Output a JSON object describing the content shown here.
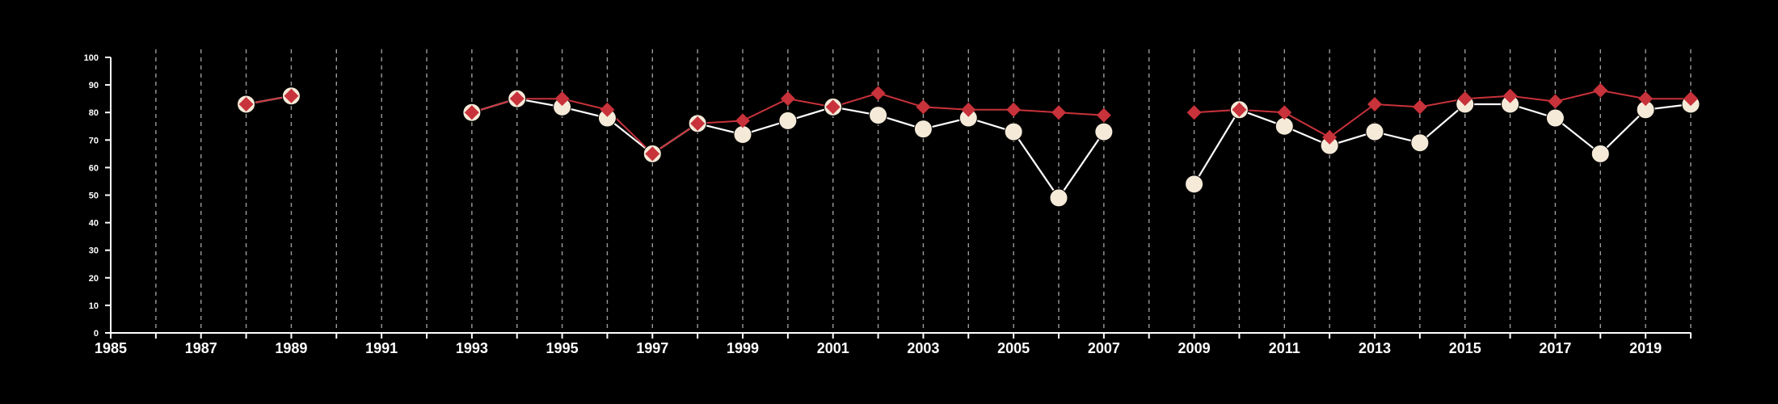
{
  "chart_data": {
    "type": "line",
    "title": "",
    "xlabel": "",
    "ylabel": "",
    "xlim": [
      1985,
      2020
    ],
    "ylim": [
      0,
      100
    ],
    "x_ticks": [
      "1985",
      "1987",
      "1989",
      "1991",
      "1993",
      "1995",
      "1997",
      "1999",
      "2001",
      "2003",
      "2005",
      "2007",
      "2009",
      "2011",
      "2013",
      "2015",
      "2017",
      "2019"
    ],
    "y_ticks": [
      "0",
      "10",
      "20",
      "30",
      "40",
      "50",
      "60",
      "70",
      "80",
      "90",
      "100"
    ],
    "vertical_grid": "dashed",
    "background": "#000000",
    "series": [
      {
        "color": "#f5ead8",
        "marker": "circle",
        "points": [
          [
            1988,
            83
          ],
          [
            1989,
            86
          ],
          [
            1993,
            80
          ],
          [
            1994,
            85
          ],
          [
            1995,
            82
          ],
          [
            1996,
            78
          ],
          [
            1997,
            65
          ],
          [
            1998,
            76
          ],
          [
            1999,
            72
          ],
          [
            2000,
            77
          ],
          [
            2001,
            82
          ],
          [
            2002,
            79
          ],
          [
            2003,
            74
          ],
          [
            2004,
            78
          ],
          [
            2005,
            73
          ],
          [
            2006,
            49
          ],
          [
            2007,
            73
          ],
          [
            2009,
            54
          ],
          [
            2010,
            81
          ],
          [
            2011,
            75
          ],
          [
            2012,
            68
          ],
          [
            2013,
            73
          ],
          [
            2014,
            69
          ],
          [
            2015,
            83
          ],
          [
            2016,
            83
          ],
          [
            2017,
            78
          ],
          [
            2018,
            65
          ],
          [
            2019,
            81
          ],
          [
            2020,
            83
          ]
        ]
      },
      {
        "color": "#c8323a",
        "marker": "diamond",
        "points": [
          [
            1988,
            83
          ],
          [
            1989,
            86
          ],
          [
            1993,
            80
          ],
          [
            1994,
            85
          ],
          [
            1995,
            85
          ],
          [
            1996,
            81
          ],
          [
            1997,
            65
          ],
          [
            1998,
            76
          ],
          [
            1999,
            77
          ],
          [
            2000,
            85
          ],
          [
            2001,
            82
          ],
          [
            2002,
            87
          ],
          [
            2003,
            82
          ],
          [
            2004,
            81
          ],
          [
            2005,
            81
          ],
          [
            2006,
            80
          ],
          [
            2007,
            79
          ],
          [
            2009,
            80
          ],
          [
            2010,
            81
          ],
          [
            2011,
            80
          ],
          [
            2012,
            71
          ],
          [
            2013,
            83
          ],
          [
            2014,
            82
          ],
          [
            2015,
            85
          ],
          [
            2016,
            86
          ],
          [
            2017,
            84
          ],
          [
            2018,
            88
          ],
          [
            2019,
            85
          ],
          [
            2020,
            85
          ]
        ]
      }
    ]
  }
}
